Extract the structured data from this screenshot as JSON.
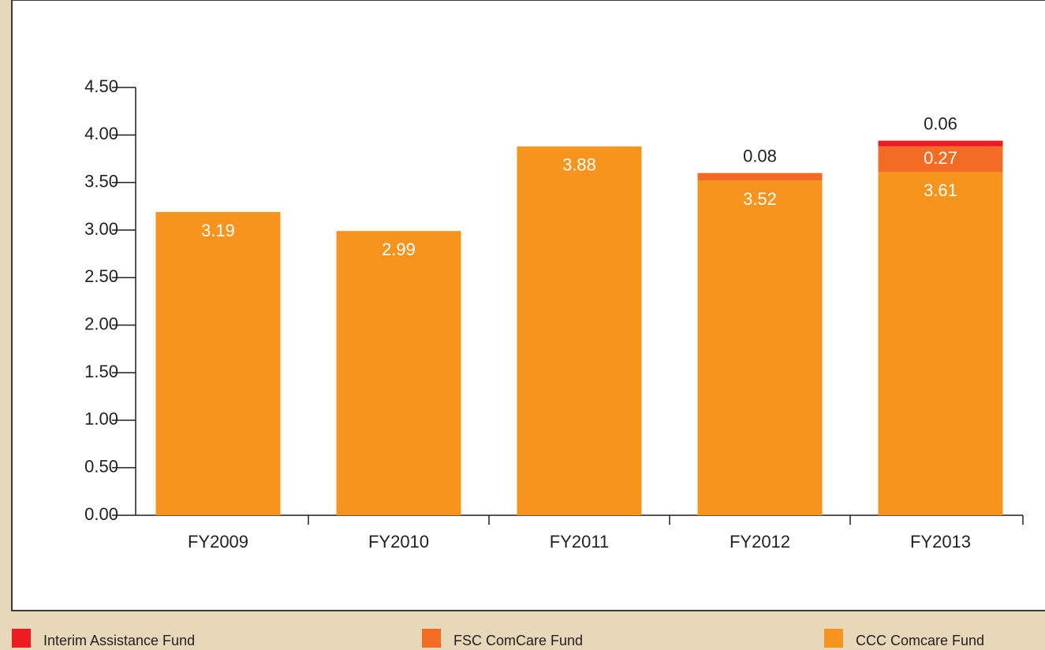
{
  "chart_data": {
    "type": "stacked_bar",
    "categories": [
      "FY2009",
      "FY2010",
      "FY2011",
      "FY2012",
      "FY2013"
    ],
    "series": [
      {
        "name": "CCC Comcare Fund",
        "color": "#f7941d",
        "values": [
          3.19,
          2.99,
          3.88,
          3.52,
          3.61
        ]
      },
      {
        "name": "FSC ComCare Fund",
        "color": "#f26c23",
        "values": [
          null,
          null,
          null,
          0.08,
          0.27
        ]
      },
      {
        "name": "Interim Assistance Fund",
        "color": "#ed1c24",
        "values": [
          null,
          null,
          null,
          null,
          0.06
        ]
      }
    ],
    "ylim": [
      0,
      4.5
    ],
    "yticks": [
      {
        "value": 0,
        "label": "0.00"
      },
      {
        "value": 0.5,
        "label": "0.50"
      },
      {
        "value": 1,
        "label": "1.00"
      },
      {
        "value": 1.5,
        "label": "1.50"
      },
      {
        "value": 2,
        "label": "2.00"
      },
      {
        "value": 2.5,
        "label": "2.50"
      },
      {
        "value": 3,
        "label": "3.00"
      },
      {
        "value": 3.5,
        "label": "3.50"
      },
      {
        "value": 4,
        "label": "4.00"
      },
      {
        "value": 4.5,
        "label": "4.50"
      }
    ],
    "value_labels": [
      [
        "3.19",
        "2.99",
        "3.88",
        "3.52",
        "3.61"
      ],
      [
        null,
        null,
        null,
        "0.08",
        "0.27"
      ],
      [
        null,
        null,
        null,
        null,
        "0.06"
      ]
    ],
    "legend": "bottom"
  }
}
